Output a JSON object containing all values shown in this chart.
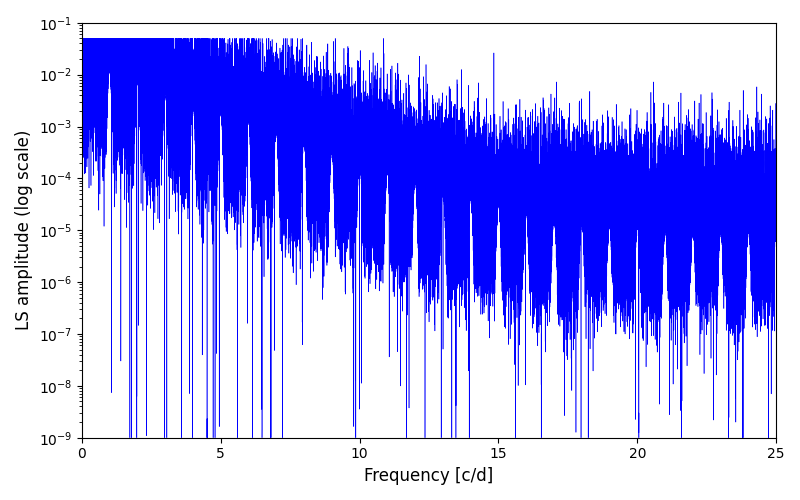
{
  "title": "",
  "xlabel": "Frequency [c/d]",
  "ylabel": "LS amplitude (log scale)",
  "xlim": [
    0,
    25
  ],
  "ylim_log": [
    1e-09,
    0.1
  ],
  "line_color": "#0000ff",
  "line_width": 0.4,
  "background_color": "#ffffff",
  "figsize": [
    8.0,
    5.0
  ],
  "dpi": 100,
  "freq_max": 25.0,
  "n_points": 50000,
  "seed": 12345
}
